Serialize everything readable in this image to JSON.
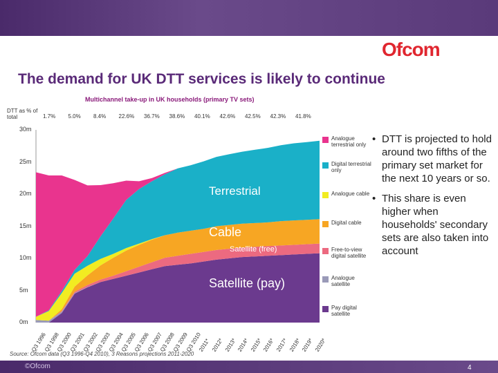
{
  "header": {
    "logo": "Ofcom",
    "title": "The demand for UK DTT services is likely to continue"
  },
  "footer": {
    "brand": "©Ofcom",
    "page": "4"
  },
  "chart_data": {
    "type": "area",
    "title": "Multichannel take-up in UK households (primary TV sets)",
    "dtt_label": "DTT as % of total",
    "dtt_pct": [
      "1.7%",
      "5.0%",
      "8.4%",
      "22.6%",
      "36.7%",
      "38.6%",
      "40.1%",
      "42.6%",
      "42.5%",
      "42.3%",
      "41.8%"
    ],
    "y_ticks": [
      "0m",
      "5m",
      "10m",
      "15m",
      "20m",
      "25m",
      "30m"
    ],
    "ylim": [
      0,
      30
    ],
    "x_labels": [
      "Q3 1996",
      "Q3 1998",
      "Q3 2000",
      "Q3 2001",
      "Q3 2002",
      "Q3 2003",
      "Q3 2004",
      "Q3 2005",
      "Q3 2006",
      "Q3 2007",
      "Q3 2008",
      "Q3 2009",
      "Q3 2010",
      "2011*",
      "2012*",
      "2013*",
      "2014*",
      "2015*",
      "2016*",
      "2017*",
      "2018*",
      "2019*",
      "2020*"
    ],
    "x": [
      0,
      1,
      2,
      3,
      4,
      5,
      6,
      7,
      8,
      9,
      10,
      11,
      12,
      13,
      14,
      15,
      16,
      17,
      18,
      19,
      20,
      21,
      22
    ],
    "series": [
      {
        "name": "Pay digital satellite",
        "color": "#6b3a8e",
        "values": [
          0,
          0,
          1.5,
          4.5,
          5.5,
          6.3,
          6.8,
          7.3,
          7.8,
          8.3,
          8.8,
          9.0,
          9.2,
          9.5,
          9.8,
          10.0,
          10.2,
          10.3,
          10.4,
          10.5,
          10.6,
          10.7,
          10.8
        ]
      },
      {
        "name": "Analogue satellite",
        "color": "#9a9ab8",
        "values": [
          0.4,
          0.3,
          0.2,
          0.1,
          0.05,
          0,
          0,
          0,
          0,
          0,
          0,
          0,
          0,
          0,
          0,
          0,
          0,
          0,
          0,
          0,
          0,
          0,
          0
        ]
      },
      {
        "name": "Free-to-view digital satellite",
        "color": "#ec6a80",
        "values": [
          0,
          0,
          0.1,
          0.2,
          0.3,
          0.4,
          0.5,
          0.7,
          0.9,
          1.1,
          1.3,
          1.4,
          1.5,
          1.5,
          1.5,
          1.5,
          1.5,
          1.5,
          1.5,
          1.5,
          1.5,
          1.5,
          1.5
        ]
      },
      {
        "name": "Digital cable",
        "color": "#f7a623",
        "values": [
          0,
          0,
          0.3,
          0.8,
          1.5,
          2.2,
          2.8,
          3.2,
          3.4,
          3.5,
          3.5,
          3.6,
          3.6,
          3.6,
          3.7,
          3.7,
          3.7,
          3.7,
          3.7,
          3.8,
          3.8,
          3.8,
          3.8
        ]
      },
      {
        "name": "Analogue cable",
        "color": "#f2ec21",
        "values": [
          0.5,
          1.5,
          2.5,
          2.0,
          1.5,
          1.0,
          0.6,
          0.4,
          0.2,
          0.1,
          0,
          0,
          0,
          0,
          0,
          0,
          0,
          0,
          0,
          0,
          0,
          0,
          0
        ]
      },
      {
        "name": "Digital terrestrial only",
        "color": "#1ab0c8",
        "values": [
          0,
          0.1,
          0.3,
          0.6,
          1.5,
          3.5,
          5.5,
          7.5,
          8.5,
          9.0,
          9.5,
          10.0,
          10.2,
          10.5,
          10.8,
          11.0,
          11.2,
          11.4,
          11.6,
          11.8,
          12.0,
          12.1,
          12.2
        ]
      },
      {
        "name": "Analogue terrestrial only",
        "color": "#e9348e",
        "values": [
          22.5,
          21.0,
          18.0,
          14.0,
          11.0,
          8.0,
          5.5,
          3.0,
          1.2,
          0.5,
          0.2,
          0,
          0,
          0,
          0,
          0,
          0,
          0,
          0,
          0,
          0,
          0,
          0
        ]
      }
    ],
    "region_labels": {
      "terrestrial": "Terrestrial",
      "cable": "Cable",
      "satellite_free": "Satellite (free)",
      "satellite_pay": "Satellite (pay)"
    },
    "grid": false,
    "legend": "right",
    "source": "Source: Ofcom data (Q3 1996-Q4 2010), 3 Reasons projections 2011-2020"
  },
  "bullets": [
    "DTT is projected to hold around two fifths of the primary set market for the next 10 years or so.",
    "This share is even higher when households' secondary sets are also taken into account"
  ]
}
